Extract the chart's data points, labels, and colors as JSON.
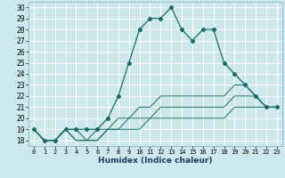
{
  "xlabel": "Humidex (Indice chaleur)",
  "xlim": [
    -0.5,
    23.5
  ],
  "ylim": [
    17.5,
    30.5
  ],
  "yticks": [
    18,
    19,
    20,
    21,
    22,
    23,
    24,
    25,
    26,
    27,
    28,
    29,
    30
  ],
  "xticks": [
    0,
    1,
    2,
    3,
    4,
    5,
    6,
    7,
    8,
    9,
    10,
    11,
    12,
    13,
    14,
    15,
    16,
    17,
    18,
    19,
    20,
    21,
    22,
    23
  ],
  "bg_color": "#cde8ec",
  "grid_color": "#ffffff",
  "line_color": "#1a6b5e",
  "lines": [
    {
      "x": [
        0,
        1,
        2,
        3,
        4,
        5,
        6,
        7,
        8,
        9,
        10,
        11,
        12,
        13,
        14,
        15,
        16,
        17,
        18,
        19,
        20,
        21,
        22,
        23
      ],
      "y": [
        19,
        18,
        18,
        19,
        19,
        19,
        19,
        20,
        22,
        25,
        28,
        29,
        29,
        30,
        28,
        27,
        28,
        28,
        25,
        24,
        23,
        22,
        21,
        21
      ],
      "markers": true
    },
    {
      "x": [
        0,
        1,
        2,
        3,
        4,
        5,
        6,
        7,
        8,
        9,
        10,
        11,
        12,
        13,
        14,
        15,
        16,
        17,
        18,
        19,
        20,
        21,
        22,
        23
      ],
      "y": [
        19,
        18,
        18,
        19,
        19,
        18,
        19,
        19,
        20,
        20,
        21,
        21,
        22,
        22,
        22,
        22,
        22,
        22,
        22,
        23,
        23,
        22,
        21,
        21
      ],
      "markers": false
    },
    {
      "x": [
        0,
        1,
        2,
        3,
        4,
        5,
        6,
        7,
        8,
        9,
        10,
        11,
        12,
        13,
        14,
        15,
        16,
        17,
        18,
        19,
        20,
        21,
        22,
        23
      ],
      "y": [
        19,
        18,
        18,
        19,
        18,
        18,
        18,
        19,
        19,
        20,
        20,
        20,
        21,
        21,
        21,
        21,
        21,
        21,
        21,
        22,
        22,
        22,
        21,
        21
      ],
      "markers": false
    },
    {
      "x": [
        0,
        1,
        2,
        3,
        4,
        5,
        6,
        7,
        8,
        9,
        10,
        11,
        12,
        13,
        14,
        15,
        16,
        17,
        18,
        19,
        20,
        21,
        22,
        23
      ],
      "y": [
        19,
        18,
        18,
        19,
        18,
        18,
        18,
        19,
        19,
        19,
        19,
        20,
        20,
        20,
        20,
        20,
        20,
        20,
        20,
        21,
        21,
        21,
        21,
        21
      ],
      "markers": false
    }
  ]
}
